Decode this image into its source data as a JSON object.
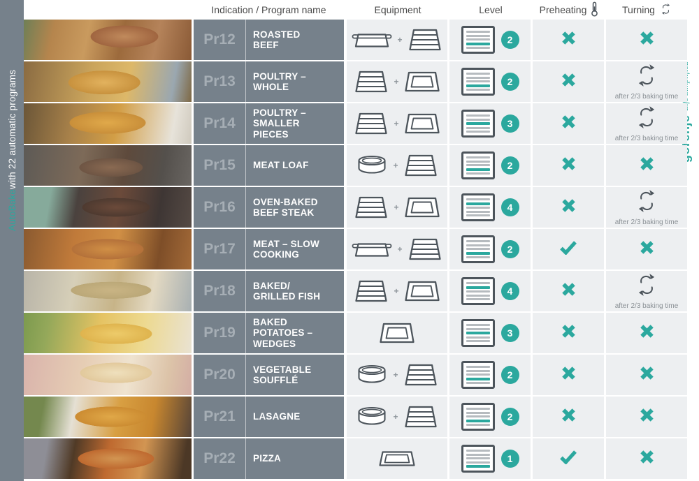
{
  "brand": {
    "logo": "gorenje",
    "tagline": "Life Simplified"
  },
  "sidebar": {
    "highlight": "AutoBake",
    "rest": " with 22 automatic programs"
  },
  "header": {
    "indication": "Indication / Program name",
    "equipment": "Equipment",
    "level": "Level",
    "preheating": "Preheating",
    "preheating_icon": "thermometer-icon",
    "turning": "Turning",
    "turning_icon": "rotate-icon"
  },
  "turning_note": "after 2/3 baking time",
  "colors": {
    "teal": "#2BA89E",
    "icon_stroke": "#4D555C",
    "cell_gray": "#76818B",
    "row_bg": "#EDEFF1"
  },
  "rows": [
    {
      "program": "Pr12",
      "name": "ROASTED\nBEEF",
      "photo": "roasted-beef",
      "equipment": [
        "roasting-pan",
        "wire-rack"
      ],
      "level": 2,
      "preheating": false,
      "turning": false
    },
    {
      "program": "Pr13",
      "name": "POULTRY –\nWHOLE",
      "photo": "poultry-whole",
      "equipment": [
        "wire-rack",
        "deep-tray"
      ],
      "level": 2,
      "preheating": false,
      "turning": true
    },
    {
      "program": "Pr14",
      "name": "POULTRY –\nSMALLER\nPIECES",
      "photo": "poultry-smaller-pieces",
      "equipment": [
        "wire-rack",
        "deep-tray"
      ],
      "level": 3,
      "preheating": false,
      "turning": true
    },
    {
      "program": "Pr15",
      "name": "MEAT LOAF",
      "photo": "meat-loaf",
      "equipment": [
        "round-dish",
        "wire-rack"
      ],
      "level": 2,
      "preheating": false,
      "turning": false
    },
    {
      "program": "Pr16",
      "name": "OVEN-BAKED\nBEEF STEAK",
      "photo": "oven-baked-beef-steak",
      "equipment": [
        "wire-rack",
        "deep-tray"
      ],
      "level": 4,
      "preheating": false,
      "turning": true
    },
    {
      "program": "Pr17",
      "name": "MEAT – SLOW\nCOOKING",
      "photo": "meat-slow-cooking",
      "equipment": [
        "roasting-pan",
        "wire-rack"
      ],
      "level": 2,
      "preheating": true,
      "turning": false
    },
    {
      "program": "Pr18",
      "name": "BAKED/\nGRILLED FISH",
      "photo": "baked-grilled-fish",
      "equipment": [
        "wire-rack",
        "deep-tray"
      ],
      "level": 4,
      "preheating": false,
      "turning": true
    },
    {
      "program": "Pr19",
      "name": "BAKED\nPOTATOES –\nWEDGES",
      "photo": "baked-potatoes-wedges",
      "equipment": [
        "deep-tray"
      ],
      "level": 3,
      "preheating": false,
      "turning": false
    },
    {
      "program": "Pr20",
      "name": "VEGETABLE\nSOUFFLÉ",
      "photo": "vegetable-souffle",
      "equipment": [
        "round-dish",
        "wire-rack"
      ],
      "level": 2,
      "preheating": false,
      "turning": false
    },
    {
      "program": "Pr21",
      "name": "LASAGNE",
      "photo": "lasagne",
      "equipment": [
        "round-dish",
        "wire-rack"
      ],
      "level": 2,
      "preheating": false,
      "turning": false
    },
    {
      "program": "Pr22",
      "name": "PIZZA",
      "photo": "pizza",
      "equipment": [
        "shallow-tray"
      ],
      "level": 1,
      "preheating": true,
      "turning": false
    }
  ]
}
